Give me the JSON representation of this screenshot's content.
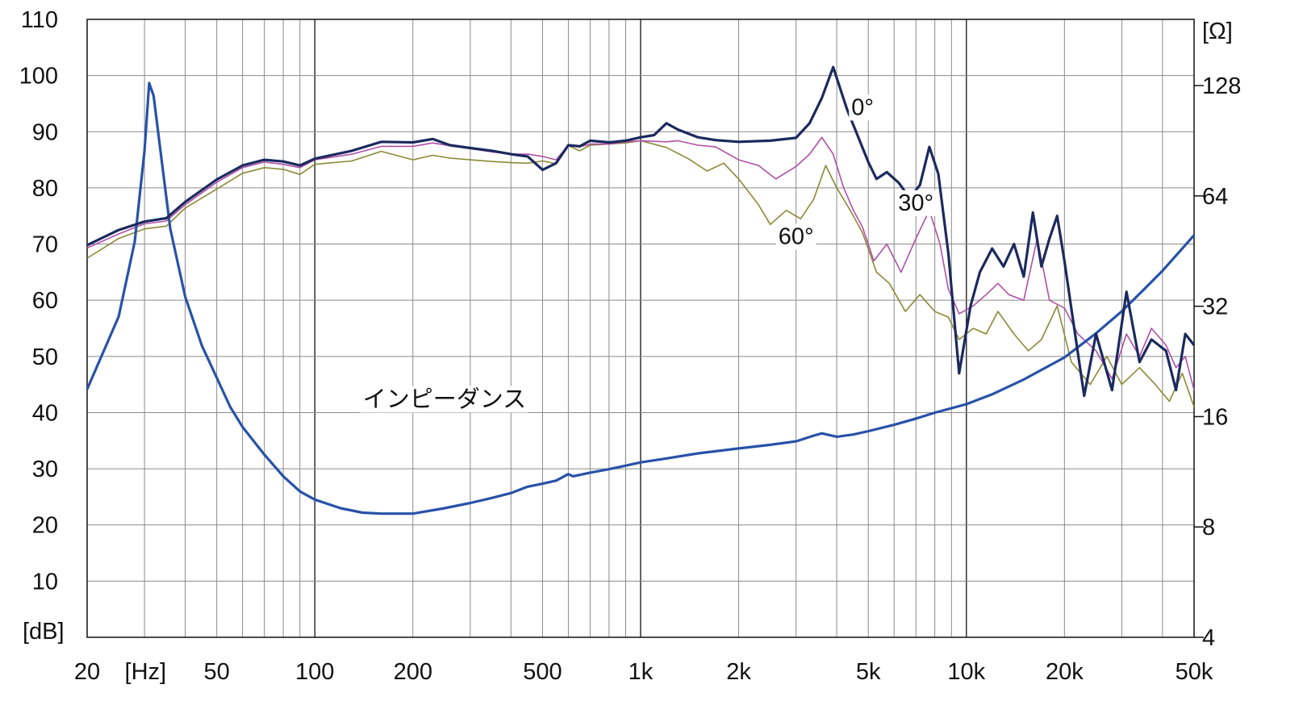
{
  "chart_data": {
    "type": "line",
    "x_scale": "log",
    "xlim": [
      20,
      50000
    ],
    "ylim_left": [
      0,
      110
    ],
    "ylim_right_log2": [
      2,
      7.6
    ],
    "grid": true,
    "left_unit": "[dB]",
    "right_unit": "[Ω]",
    "x_unit": "[Hz]",
    "x_ticks": [
      {
        "value": 20,
        "label": "20"
      },
      {
        "value": 50,
        "label": "50"
      },
      {
        "value": 100,
        "label": "100"
      },
      {
        "value": 200,
        "label": "200"
      },
      {
        "value": 500,
        "label": "500"
      },
      {
        "value": 1000,
        "label": "1k"
      },
      {
        "value": 2000,
        "label": "2k"
      },
      {
        "value": 5000,
        "label": "5k"
      },
      {
        "value": 10000,
        "label": "10k"
      },
      {
        "value": 20000,
        "label": "20k"
      },
      {
        "value": 50000,
        "label": "50k"
      }
    ],
    "y_ticks_left": [
      "10",
      "20",
      "30",
      "40",
      "50",
      "60",
      "70",
      "80",
      "90",
      "100",
      "110"
    ],
    "y_ticks_right": [
      {
        "value": 4,
        "label": "4"
      },
      {
        "value": 8,
        "label": "8"
      },
      {
        "value": 16,
        "label": "16"
      },
      {
        "value": 32,
        "label": "32"
      },
      {
        "value": 64,
        "label": "64"
      },
      {
        "value": 128,
        "label": "128"
      }
    ],
    "series": [
      {
        "name": "0°",
        "axis": "left",
        "color": "#1b2a5e",
        "width": 3.2,
        "points": [
          [
            20,
            69.8
          ],
          [
            25,
            72.5
          ],
          [
            30,
            74
          ],
          [
            35,
            74.6
          ],
          [
            40,
            77.5
          ],
          [
            50,
            81.5
          ],
          [
            60,
            84
          ],
          [
            70,
            85
          ],
          [
            80,
            84.7
          ],
          [
            90,
            84
          ],
          [
            100,
            85.2
          ],
          [
            130,
            86.6
          ],
          [
            160,
            88.2
          ],
          [
            200,
            88.1
          ],
          [
            230,
            88.7
          ],
          [
            260,
            87.6
          ],
          [
            300,
            87.1
          ],
          [
            350,
            86.6
          ],
          [
            400,
            86
          ],
          [
            450,
            85.6
          ],
          [
            500,
            83.2
          ],
          [
            550,
            84.4
          ],
          [
            600,
            87.6
          ],
          [
            650,
            87.4
          ],
          [
            700,
            88.4
          ],
          [
            800,
            88.1
          ],
          [
            900,
            88.4
          ],
          [
            1000,
            89
          ],
          [
            1100,
            89.4
          ],
          [
            1200,
            91.5
          ],
          [
            1300,
            90.4
          ],
          [
            1500,
            89
          ],
          [
            1700,
            88.5
          ],
          [
            2000,
            88.2
          ],
          [
            2500,
            88.4
          ],
          [
            3000,
            88.9
          ],
          [
            3300,
            91.5
          ],
          [
            3600,
            96
          ],
          [
            3900,
            101.5
          ],
          [
            4300,
            94
          ],
          [
            5000,
            84.6
          ],
          [
            5300,
            81.6
          ],
          [
            5700,
            82.8
          ],
          [
            6200,
            80.9
          ],
          [
            6700,
            78.2
          ],
          [
            7200,
            80.5
          ],
          [
            7700,
            87.3
          ],
          [
            8200,
            82.5
          ],
          [
            8800,
            68.4
          ],
          [
            9500,
            47
          ],
          [
            10300,
            59
          ],
          [
            11000,
            65
          ],
          [
            12000,
            69.2
          ],
          [
            13000,
            66
          ],
          [
            14000,
            70
          ],
          [
            15000,
            64.2
          ],
          [
            16000,
            75.6
          ],
          [
            17000,
            66
          ],
          [
            18000,
            71
          ],
          [
            19000,
            75
          ],
          [
            20000,
            67
          ],
          [
            21000,
            58.5
          ],
          [
            23000,
            43
          ],
          [
            25000,
            54
          ],
          [
            28000,
            44
          ],
          [
            31000,
            61.5
          ],
          [
            34000,
            49
          ],
          [
            37000,
            53
          ],
          [
            41000,
            51
          ],
          [
            44000,
            44
          ],
          [
            47000,
            54
          ],
          [
            50000,
            52
          ]
        ]
      },
      {
        "name": "30°",
        "axis": "left",
        "color": "#b050a8",
        "width": 1.6,
        "points": [
          [
            20,
            69.3
          ],
          [
            25,
            71.8
          ],
          [
            30,
            73.6
          ],
          [
            35,
            74.1
          ],
          [
            40,
            77
          ],
          [
            50,
            81
          ],
          [
            60,
            83.6
          ],
          [
            70,
            84.6
          ],
          [
            80,
            84.2
          ],
          [
            90,
            83.6
          ],
          [
            100,
            85
          ],
          [
            130,
            86
          ],
          [
            160,
            87.4
          ],
          [
            200,
            87.4
          ],
          [
            230,
            88
          ],
          [
            260,
            87.5
          ],
          [
            300,
            87
          ],
          [
            350,
            86.4
          ],
          [
            400,
            86
          ],
          [
            450,
            86
          ],
          [
            500,
            85.6
          ],
          [
            550,
            85
          ],
          [
            600,
            87.6
          ],
          [
            650,
            87.3
          ],
          [
            700,
            87.8
          ],
          [
            800,
            87.8
          ],
          [
            900,
            88.2
          ],
          [
            1000,
            88.4
          ],
          [
            1200,
            88.2
          ],
          [
            1300,
            88.4
          ],
          [
            1500,
            87.6
          ],
          [
            1700,
            87.3
          ],
          [
            2000,
            85
          ],
          [
            2300,
            84
          ],
          [
            2600,
            81.6
          ],
          [
            3000,
            83.8
          ],
          [
            3300,
            86
          ],
          [
            3600,
            89
          ],
          [
            3900,
            86
          ],
          [
            4200,
            80
          ],
          [
            4500,
            76
          ],
          [
            4800,
            73
          ],
          [
            5200,
            67
          ],
          [
            5700,
            70
          ],
          [
            6300,
            65
          ],
          [
            7000,
            71
          ],
          [
            7700,
            76
          ],
          [
            8300,
            70
          ],
          [
            8800,
            62
          ],
          [
            9500,
            57.6
          ],
          [
            10500,
            59
          ],
          [
            11500,
            61
          ],
          [
            12500,
            63
          ],
          [
            13500,
            61
          ],
          [
            15000,
            60
          ],
          [
            16500,
            71
          ],
          [
            18000,
            60
          ],
          [
            20000,
            58.6
          ],
          [
            22000,
            54
          ],
          [
            25000,
            51
          ],
          [
            28000,
            46
          ],
          [
            31000,
            54
          ],
          [
            34000,
            50
          ],
          [
            37000,
            55
          ],
          [
            41000,
            52
          ],
          [
            44000,
            48
          ],
          [
            47000,
            50
          ],
          [
            50000,
            44
          ]
        ]
      },
      {
        "name": "60°",
        "axis": "left",
        "color": "#8a8a36",
        "width": 1.6,
        "points": [
          [
            20,
            67.5
          ],
          [
            25,
            71
          ],
          [
            30,
            72.7
          ],
          [
            35,
            73.2
          ],
          [
            40,
            76.4
          ],
          [
            50,
            79.8
          ],
          [
            60,
            82.6
          ],
          [
            70,
            83.6
          ],
          [
            80,
            83.3
          ],
          [
            90,
            82.4
          ],
          [
            100,
            84.2
          ],
          [
            130,
            84.8
          ],
          [
            160,
            86.5
          ],
          [
            200,
            85
          ],
          [
            230,
            85.8
          ],
          [
            260,
            85.3
          ],
          [
            300,
            85
          ],
          [
            350,
            84.7
          ],
          [
            400,
            84.5
          ],
          [
            450,
            84.4
          ],
          [
            500,
            84.8
          ],
          [
            550,
            84.3
          ],
          [
            600,
            87.5
          ],
          [
            650,
            86.6
          ],
          [
            700,
            87.6
          ],
          [
            800,
            87.8
          ],
          [
            900,
            88
          ],
          [
            1000,
            88.4
          ],
          [
            1200,
            87.2
          ],
          [
            1400,
            85.2
          ],
          [
            1600,
            83
          ],
          [
            1800,
            84.4
          ],
          [
            2000,
            81.6
          ],
          [
            2300,
            77
          ],
          [
            2500,
            73.5
          ],
          [
            2800,
            76
          ],
          [
            3100,
            74.5
          ],
          [
            3400,
            78
          ],
          [
            3700,
            84
          ],
          [
            4000,
            80
          ],
          [
            4400,
            76
          ],
          [
            4800,
            72
          ],
          [
            5300,
            65
          ],
          [
            5800,
            63
          ],
          [
            6500,
            58
          ],
          [
            7200,
            61
          ],
          [
            8000,
            58
          ],
          [
            8800,
            57
          ],
          [
            9500,
            53
          ],
          [
            10500,
            55
          ],
          [
            11500,
            54
          ],
          [
            12500,
            58
          ],
          [
            14000,
            54
          ],
          [
            15500,
            51
          ],
          [
            17000,
            53
          ],
          [
            19000,
            59
          ],
          [
            21000,
            49
          ],
          [
            24000,
            45
          ],
          [
            27000,
            50
          ],
          [
            30000,
            45
          ],
          [
            34000,
            48
          ],
          [
            38000,
            45
          ],
          [
            42000,
            42
          ],
          [
            46000,
            47
          ],
          [
            50000,
            41
          ]
        ]
      },
      {
        "name": "インピーダンス",
        "axis": "right",
        "color": "#2852a8",
        "width": 3.2,
        "points": [
          [
            20,
            19
          ],
          [
            25,
            30
          ],
          [
            28,
            48
          ],
          [
            30,
            85
          ],
          [
            31,
            130
          ],
          [
            32,
            120
          ],
          [
            34,
            78
          ],
          [
            36,
            52
          ],
          [
            40,
            34
          ],
          [
            45,
            25
          ],
          [
            55,
            17
          ],
          [
            60,
            15
          ],
          [
            70,
            12.6
          ],
          [
            80,
            11
          ],
          [
            90,
            10
          ],
          [
            100,
            9.5
          ],
          [
            120,
            9.0
          ],
          [
            140,
            8.75
          ],
          [
            160,
            8.7
          ],
          [
            200,
            8.7
          ],
          [
            250,
            9.0
          ],
          [
            300,
            9.3
          ],
          [
            350,
            9.6
          ],
          [
            400,
            9.9
          ],
          [
            450,
            10.3
          ],
          [
            500,
            10.5
          ],
          [
            550,
            10.7
          ],
          [
            600,
            11.15
          ],
          [
            620,
            11.0
          ],
          [
            700,
            11.25
          ],
          [
            800,
            11.5
          ],
          [
            1000,
            12
          ],
          [
            1200,
            12.3
          ],
          [
            1500,
            12.7
          ],
          [
            2000,
            13.1
          ],
          [
            2500,
            13.4
          ],
          [
            3000,
            13.7
          ],
          [
            3400,
            14.2
          ],
          [
            3600,
            14.4
          ],
          [
            4000,
            14.1
          ],
          [
            4500,
            14.3
          ],
          [
            5000,
            14.6
          ],
          [
            6000,
            15.2
          ],
          [
            7000,
            15.8
          ],
          [
            8000,
            16.4
          ],
          [
            10000,
            17.3
          ],
          [
            12000,
            18.4
          ],
          [
            15000,
            20.2
          ],
          [
            20000,
            23.2
          ],
          [
            25000,
            27
          ],
          [
            30000,
            31
          ],
          [
            35000,
            35.5
          ],
          [
            40000,
            40
          ],
          [
            45000,
            45
          ],
          [
            50000,
            50
          ]
        ]
      }
    ],
    "annotations": [
      {
        "text": "0°",
        "freq": 4800,
        "db": 93
      },
      {
        "text": "30°",
        "freq": 7000,
        "db": 76
      },
      {
        "text": "60°",
        "freq": 3000,
        "db": 70
      },
      {
        "text": "インピーダンス",
        "freq": 250,
        "db": 41
      }
    ]
  }
}
